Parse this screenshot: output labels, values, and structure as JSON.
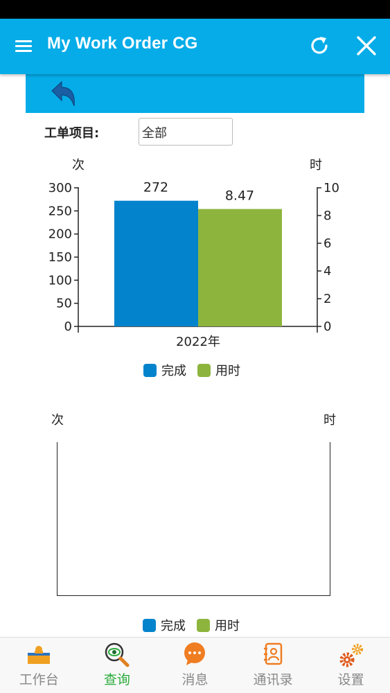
{
  "app": {
    "title": "My Work Order CG"
  },
  "filter": {
    "label": "工单项目:",
    "value": "全部"
  },
  "chart1": {
    "left_unit": "次",
    "right_unit": "时",
    "left_ticks": [
      "300",
      "250",
      "200",
      "150",
      "100",
      "50",
      "0"
    ],
    "right_ticks": [
      "10",
      "8",
      "6",
      "4",
      "2",
      "0"
    ],
    "category": "2022年",
    "bar1_label": "272",
    "bar2_label": "8.47"
  },
  "chart2": {
    "left_unit": "次",
    "right_unit": "时"
  },
  "legend": {
    "done": "完成",
    "time": "用时"
  },
  "colors": {
    "accent": "#05ace8",
    "done": "#0383cc",
    "time": "#8db53d",
    "active_tab": "#2bab3b"
  },
  "tabs": [
    {
      "label": "工作台",
      "icon": "workbench-icon"
    },
    {
      "label": "查询",
      "icon": "search-eye-icon"
    },
    {
      "label": "消息",
      "icon": "message-icon"
    },
    {
      "label": "通讯录",
      "icon": "contacts-icon"
    },
    {
      "label": "设置",
      "icon": "gear-icon"
    }
  ],
  "chart_data": [
    {
      "type": "bar",
      "categories": [
        "2022年"
      ],
      "series": [
        {
          "name": "完成",
          "values": [
            272
          ],
          "axis": "left"
        },
        {
          "name": "用时",
          "values": [
            8.47
          ],
          "axis": "right"
        }
      ],
      "ylabel": "次",
      "y2label": "时",
      "ylim": [
        0,
        300
      ],
      "y2lim": [
        0,
        10
      ],
      "legend": "bottom",
      "grid": false
    },
    {
      "type": "bar",
      "categories": [],
      "series": [
        {
          "name": "完成",
          "values": []
        },
        {
          "name": "用时",
          "values": []
        }
      ],
      "ylabel": "次",
      "y2label": "时",
      "legend": "bottom",
      "grid": false
    }
  ]
}
